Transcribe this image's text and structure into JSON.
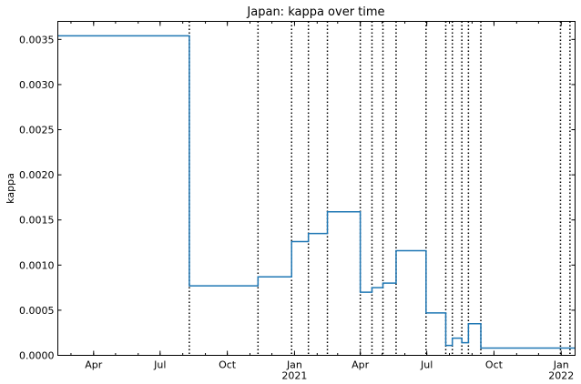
{
  "chart_data": {
    "type": "line",
    "title": "Japan: kappa over time",
    "ylabel": "kappa",
    "xlabel": "",
    "xlim": [
      "2020-02-12",
      "2022-01-20"
    ],
    "ylim": [
      0,
      0.0037
    ],
    "yticks": [
      0,
      0.0005,
      0.001,
      0.0015,
      0.002,
      0.0025,
      0.003,
      0.0035
    ],
    "ytick_labels": [
      "0.0000",
      "0.0005",
      "0.0010",
      "0.0015",
      "0.0020",
      "0.0025",
      "0.0030",
      "0.0035"
    ],
    "xticks": [
      {
        "date": "2020-04-01",
        "label": "Apr",
        "sublabel": ""
      },
      {
        "date": "2020-07-01",
        "label": "Jul",
        "sublabel": ""
      },
      {
        "date": "2020-10-01",
        "label": "Oct",
        "sublabel": ""
      },
      {
        "date": "2021-01-01",
        "label": "Jan",
        "sublabel": "2021"
      },
      {
        "date": "2021-04-01",
        "label": "Apr",
        "sublabel": ""
      },
      {
        "date": "2021-07-01",
        "label": "Jul",
        "sublabel": ""
      },
      {
        "date": "2021-10-01",
        "label": "Oct",
        "sublabel": ""
      },
      {
        "date": "2022-01-01",
        "label": "Jan",
        "sublabel": "2022"
      }
    ],
    "line_color": "#1f77b4",
    "changepoint_color": "#000000",
    "grid": false,
    "changepoints": [
      "2020-08-10",
      "2020-11-12",
      "2020-12-28",
      "2021-01-20",
      "2021-02-15",
      "2021-04-01",
      "2021-04-17",
      "2021-05-02",
      "2021-05-20",
      "2021-06-30",
      "2021-07-27",
      "2021-08-05",
      "2021-08-18",
      "2021-08-27",
      "2021-09-13",
      "2021-12-31",
      "2022-01-13"
    ],
    "series": [
      {
        "segments": [
          {
            "start": "2020-02-12",
            "end": "2020-08-10",
            "value": 0.00354
          },
          {
            "start": "2020-08-10",
            "end": "2020-11-12",
            "value": 0.00077
          },
          {
            "start": "2020-11-12",
            "end": "2020-12-28",
            "value": 0.00087
          },
          {
            "start": "2020-12-28",
            "end": "2021-01-20",
            "value": 0.00126
          },
          {
            "start": "2021-01-20",
            "end": "2021-02-15",
            "value": 0.00135
          },
          {
            "start": "2021-02-15",
            "end": "2021-04-01",
            "value": 0.00159
          },
          {
            "start": "2021-04-01",
            "end": "2021-04-17",
            "value": 0.0007
          },
          {
            "start": "2021-04-17",
            "end": "2021-05-02",
            "value": 0.00075
          },
          {
            "start": "2021-05-02",
            "end": "2021-05-20",
            "value": 0.0008
          },
          {
            "start": "2021-05-20",
            "end": "2021-06-30",
            "value": 0.00116
          },
          {
            "start": "2021-06-30",
            "end": "2021-07-27",
            "value": 0.00047
          },
          {
            "start": "2021-07-27",
            "end": "2021-08-05",
            "value": 0.00011
          },
          {
            "start": "2021-08-05",
            "end": "2021-08-18",
            "value": 0.00019
          },
          {
            "start": "2021-08-18",
            "end": "2021-08-27",
            "value": 0.00014
          },
          {
            "start": "2021-08-27",
            "end": "2021-09-13",
            "value": 0.00035
          },
          {
            "start": "2021-09-13",
            "end": "2022-01-20",
            "value": 8e-05,
            "end_value": 8e-05
          }
        ]
      }
    ]
  }
}
